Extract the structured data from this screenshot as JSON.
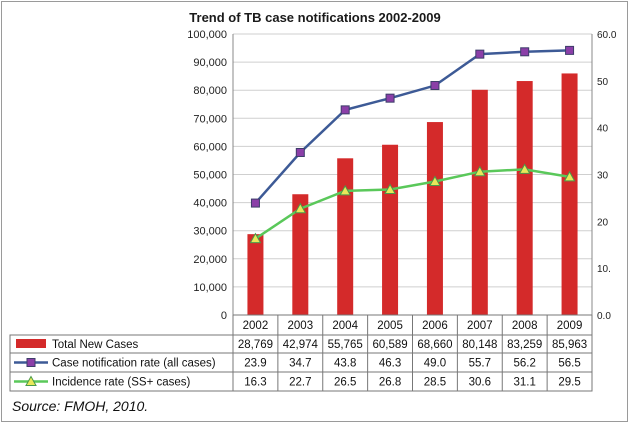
{
  "source": "Source: FMOH, 2010.",
  "chart_data": {
    "type": "bar",
    "title": "Trend of TB case notifications 2002-2009",
    "categories": [
      "2002",
      "2003",
      "2004",
      "2005",
      "2006",
      "2007",
      "2008",
      "2009"
    ],
    "ylim": [
      0,
      100000
    ],
    "y_ticks": [
      "0",
      "10,000",
      "20,000",
      "30,000",
      "40,000",
      "50,000",
      "60,000",
      "70,000",
      "80,000",
      "90,000",
      "100,000"
    ],
    "y2lim": [
      0,
      60
    ],
    "y2_ticks": [
      "0.0",
      "10.",
      "20",
      "30",
      "40",
      "50",
      "60.0"
    ],
    "grid": true,
    "series": [
      {
        "name": "Total New Cases",
        "type": "bar",
        "axis": "left",
        "color": "#d42a2a",
        "values": [
          28769,
          42974,
          55765,
          60589,
          68660,
          80148,
          83259,
          85963
        ],
        "labels": [
          "28,769",
          "42,974",
          "55,765",
          "60,589",
          "68,660",
          "80,148",
          "83,259",
          "85,963"
        ]
      },
      {
        "name": "Case notification rate (all cases)",
        "type": "line",
        "axis": "right",
        "color": "#3d5a96",
        "marker": "square",
        "marker_color": "#8b3fa8",
        "values": [
          23.9,
          34.7,
          43.8,
          46.3,
          49.0,
          55.7,
          56.2,
          56.5
        ],
        "labels": [
          "23.9",
          "34.7",
          "43.8",
          "46.3",
          "49.0",
          "55.7",
          "56.2",
          "56.5"
        ]
      },
      {
        "name": "Incidence rate (SS+ cases)",
        "type": "line",
        "axis": "right",
        "color": "#5ac85a",
        "marker": "triangle",
        "marker_color": "#e8e85a",
        "values": [
          16.3,
          22.7,
          26.5,
          26.8,
          28.5,
          30.6,
          31.1,
          29.5
        ],
        "labels": [
          "16.3",
          "22.7",
          "26.5",
          "26.8",
          "28.5",
          "30.6",
          "31.1",
          "29.5"
        ]
      }
    ]
  }
}
